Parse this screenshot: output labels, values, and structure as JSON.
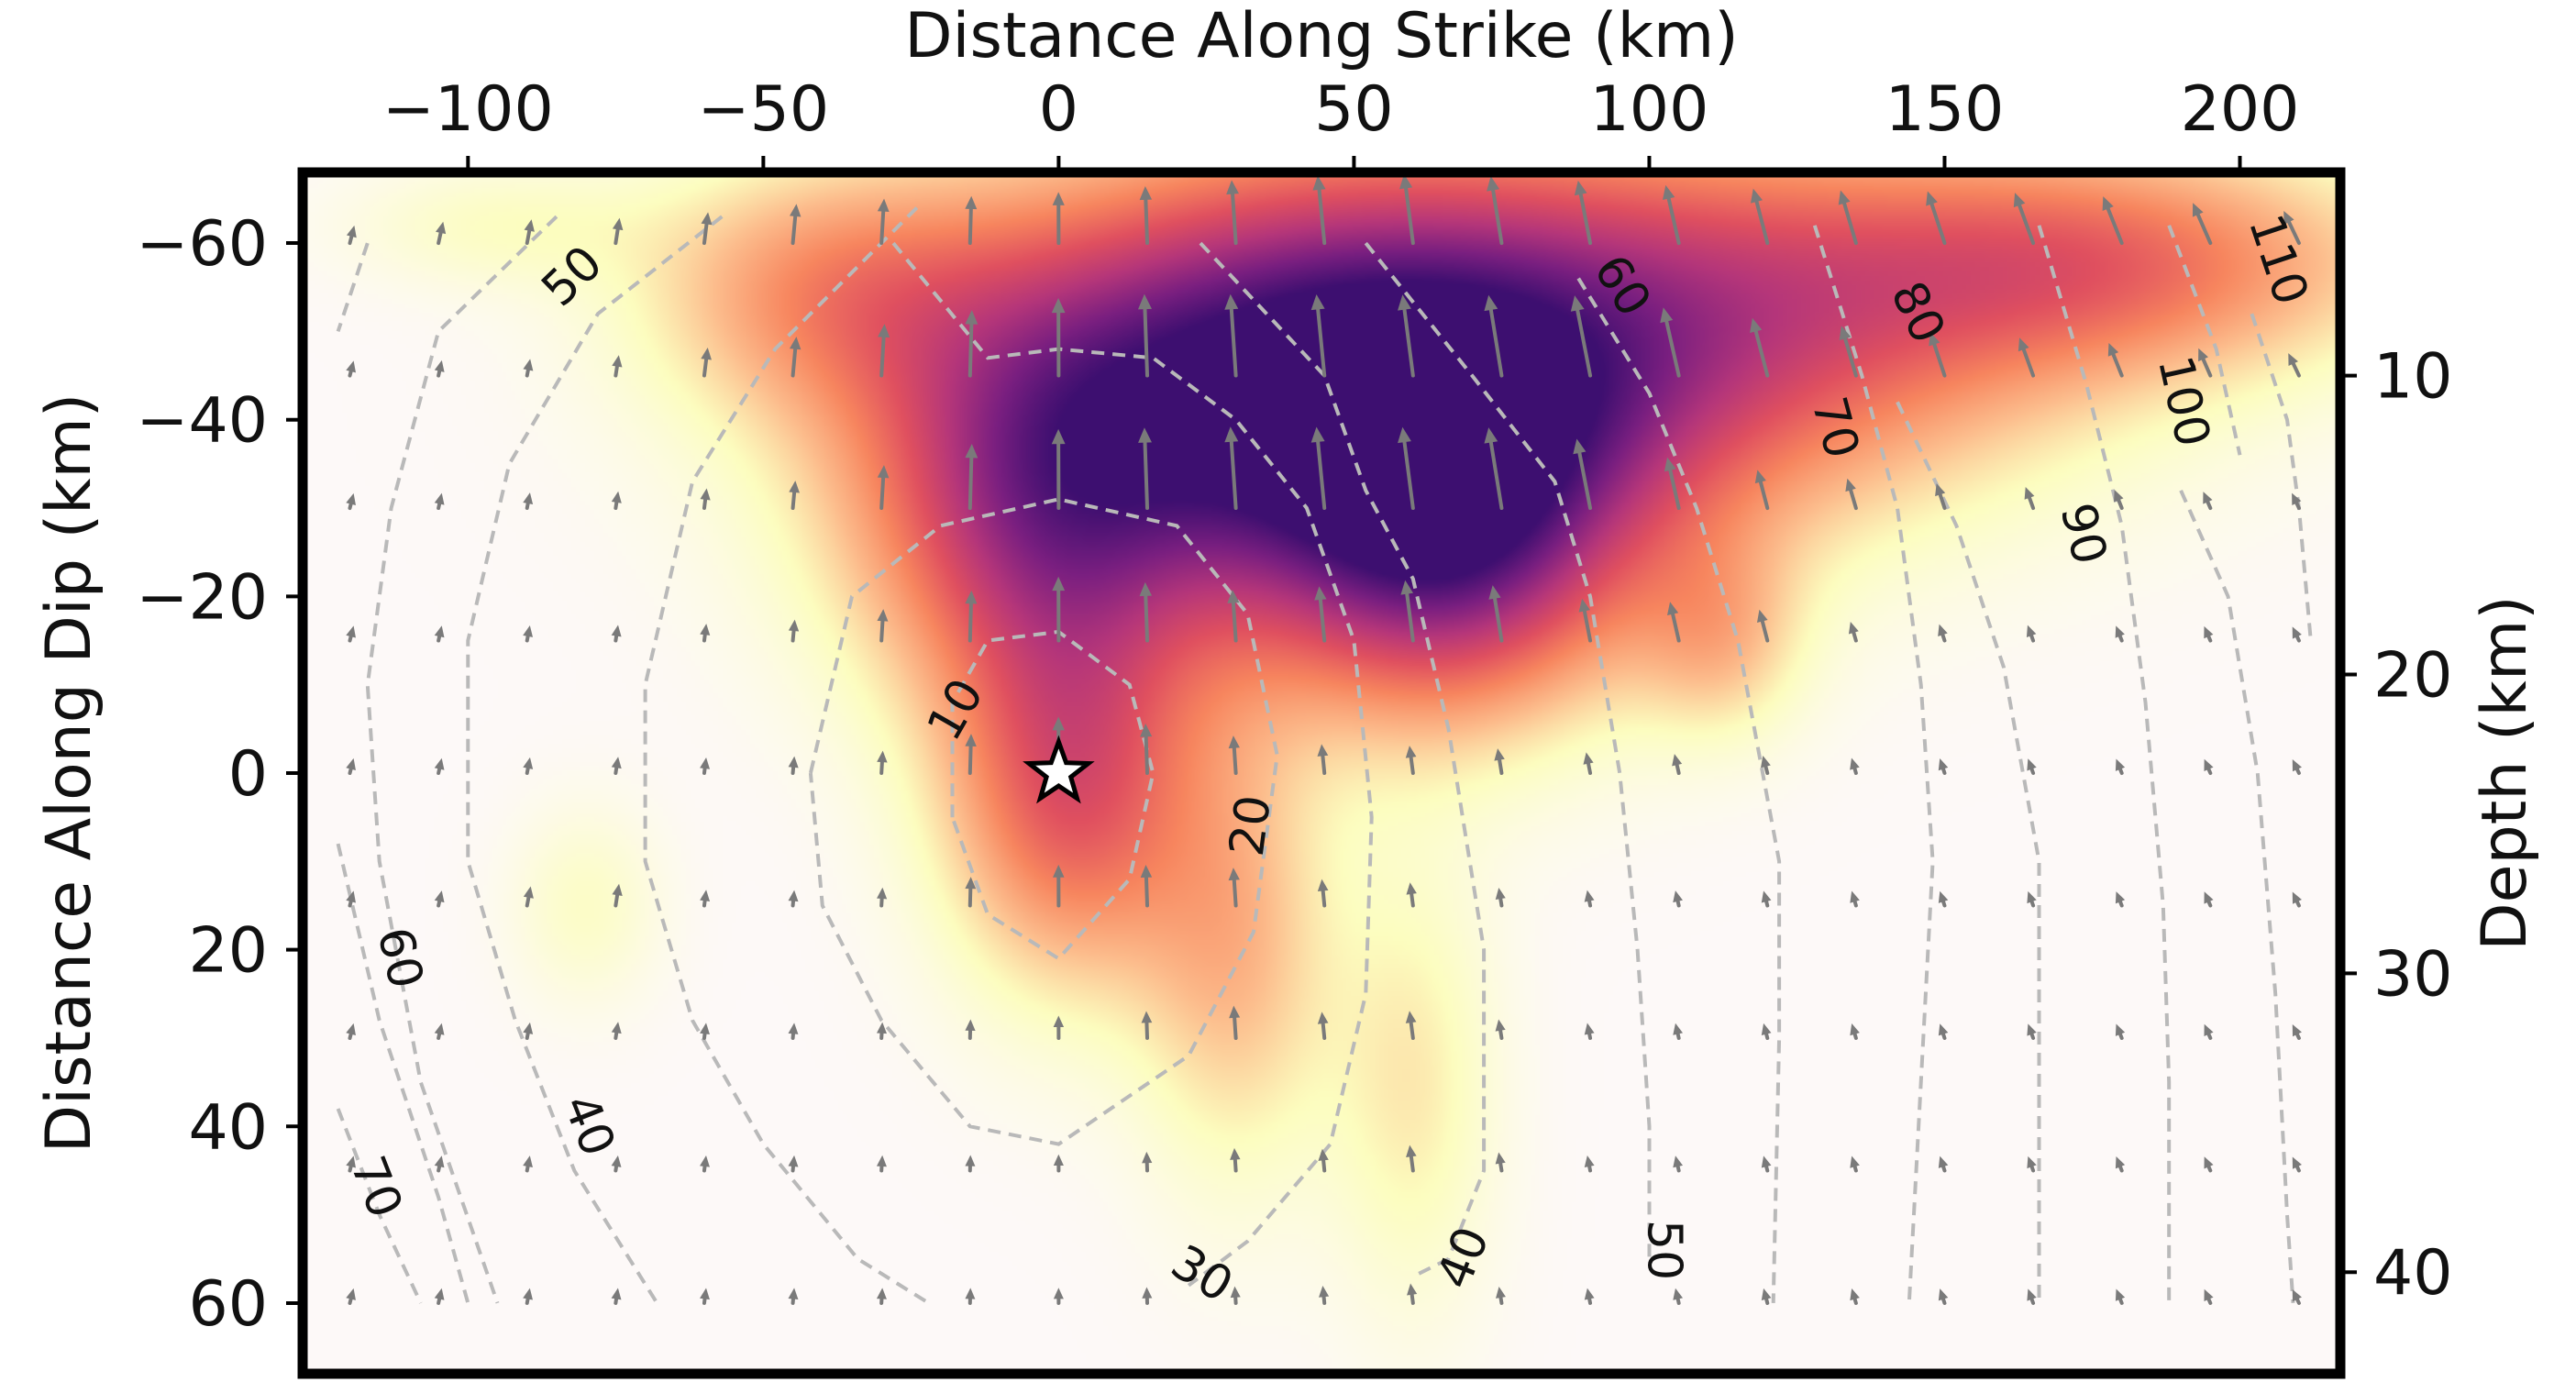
{
  "chart_data": {
    "type": "heatmap",
    "title": "",
    "xlabel_top": "Distance Along Strike (km)",
    "ylabel_left": "Distance Along Dip (km)",
    "ylabel_right": "Depth (km)",
    "xlim": [
      -128,
      217
    ],
    "ylim": [
      68,
      -68
    ],
    "x_ticks": [
      -100,
      -50,
      0,
      50,
      100,
      150,
      200
    ],
    "x_tick_labels": [
      "−100",
      "−50",
      "0",
      "50",
      "100",
      "150",
      "200"
    ],
    "y_ticks": [
      -60,
      -40,
      -20,
      0,
      20,
      40,
      60
    ],
    "y_tick_labels": [
      "−60",
      "−40",
      "−20",
      "0",
      "20",
      "40",
      "60"
    ],
    "depth_ticks": [
      10,
      20,
      30,
      40
    ],
    "depth_tick_labels": [
      "10",
      "20",
      "30",
      "40"
    ],
    "depth_range": [
      3.2,
      43.4
    ],
    "colormap": [
      "#fdf9f8",
      "#fcfdbf",
      "#fcbc8c",
      "#f7855e",
      "#e0505f",
      "#b5367a",
      "#7a1f80",
      "#3d0f70"
    ],
    "grid": false,
    "hypocenter": {
      "x": 0,
      "y": 0,
      "marker": "star"
    },
    "slip_patches": [
      {
        "x": 45,
        "y": -45,
        "sx": 45,
        "sy": 17,
        "amp": 1.0
      },
      {
        "x": 65,
        "y": -25,
        "sx": 22,
        "sy": 14,
        "amp": 0.62
      },
      {
        "x": -3,
        "y": -28,
        "sx": 22,
        "sy": 16,
        "amp": 0.5
      },
      {
        "x": 2,
        "y": 3,
        "sx": 15,
        "sy": 15,
        "amp": 0.5
      },
      {
        "x": 120,
        "y": -52,
        "sx": 45,
        "sy": 15,
        "amp": 0.42
      },
      {
        "x": 180,
        "y": -58,
        "sx": 35,
        "sy": 9,
        "amp": 0.38
      },
      {
        "x": -40,
        "y": -55,
        "sx": 22,
        "sy": 10,
        "amp": 0.3
      },
      {
        "x": 30,
        "y": 20,
        "sx": 12,
        "sy": 18,
        "amp": 0.28
      },
      {
        "x": 60,
        "y": 35,
        "sx": 10,
        "sy": 18,
        "amp": 0.18
      },
      {
        "x": 112,
        "y": -15,
        "sx": 10,
        "sy": 8,
        "amp": 0.22
      },
      {
        "x": -80,
        "y": 15,
        "sx": 9,
        "sy": 8,
        "amp": 0.12
      },
      {
        "x": -95,
        "y": -62,
        "sx": 18,
        "sy": 5,
        "amp": 0.12
      }
    ],
    "rupture_contours": [
      {
        "label": "10",
        "points": [
          [
            -18,
            5
          ],
          [
            -18,
            -8
          ],
          [
            -12,
            -15
          ],
          [
            0,
            -16
          ],
          [
            12,
            -10
          ],
          [
            16,
            0
          ],
          [
            12,
            12
          ],
          [
            0,
            21
          ],
          [
            -12,
            16
          ],
          [
            -18,
            5
          ]
        ],
        "label_at": [
          -17,
          -7
        ]
      },
      {
        "label": "20",
        "points": [
          [
            -42,
            0
          ],
          [
            -35,
            -20
          ],
          [
            -20,
            -28
          ],
          [
            0,
            -31
          ],
          [
            20,
            -28
          ],
          [
            32,
            -18
          ],
          [
            37,
            -2
          ],
          [
            33,
            18
          ],
          [
            22,
            32
          ],
          [
            0,
            42
          ],
          [
            -15,
            40
          ],
          [
            -30,
            28
          ],
          [
            -40,
            15
          ],
          [
            -42,
            0
          ]
        ],
        "label_at": [
          33,
          6
        ]
      },
      {
        "label": "30",
        "points": [
          [
            -24,
            -64
          ],
          [
            -48,
            -48
          ],
          [
            -62,
            -33
          ],
          [
            -70,
            -10
          ],
          [
            -70,
            10
          ],
          [
            -62,
            28
          ],
          [
            -50,
            42
          ],
          [
            -34,
            55
          ],
          [
            -22,
            60
          ]
        ],
        "label_at": [
          24,
          57
        ]
      },
      {
        "label": "30",
        "points": [
          [
            -28,
            -60
          ],
          [
            -12,
            -47
          ],
          [
            0,
            -48
          ],
          [
            16,
            -47
          ],
          [
            30,
            -40
          ],
          [
            42,
            -30
          ],
          [
            50,
            -15
          ],
          [
            53,
            5
          ],
          [
            52,
            25
          ],
          [
            46,
            42
          ],
          [
            32,
            53
          ],
          [
            22,
            58
          ]
        ],
        "label_at": null
      },
      {
        "label": "40",
        "points": [
          [
            -57,
            -63
          ],
          [
            -78,
            -52
          ],
          [
            -93,
            -35
          ],
          [
            -100,
            -15
          ],
          [
            -100,
            10
          ],
          [
            -92,
            28
          ],
          [
            -82,
            45
          ],
          [
            -68,
            60
          ]
        ],
        "label_at": [
          -80,
          40
        ]
      },
      {
        "label": "40",
        "points": [
          [
            24,
            -60
          ],
          [
            45,
            -45
          ],
          [
            52,
            -32
          ],
          [
            60,
            -22
          ],
          [
            66,
            -5
          ],
          [
            72,
            20
          ],
          [
            72,
            45
          ],
          [
            66,
            55
          ],
          [
            60,
            57
          ]
        ],
        "label_at": [
          69,
          55
        ]
      },
      {
        "label": "50",
        "points": [
          [
            -85,
            -63
          ],
          [
            -105,
            -50
          ],
          [
            -113,
            -30
          ],
          [
            -117,
            -10
          ],
          [
            -115,
            10
          ],
          [
            -108,
            35
          ],
          [
            -95,
            60
          ]
        ],
        "label_at": [
          -82,
          -56
        ]
      },
      {
        "label": "50",
        "points": [
          [
            52,
            -60
          ],
          [
            70,
            -45
          ],
          [
            84,
            -33
          ],
          [
            90,
            -20
          ],
          [
            95,
            0
          ],
          [
            98,
            20
          ],
          [
            100,
            40
          ],
          [
            100,
            55
          ]
        ],
        "label_at": [
          102,
          54
        ]
      },
      {
        "label": "60",
        "points": [
          [
            -117,
            -60
          ],
          [
            -122,
            -50
          ]
        ],
        "label_at": null
      },
      {
        "label": "60",
        "points": [
          [
            -122,
            8
          ],
          [
            -115,
            28
          ],
          [
            -105,
            48
          ],
          [
            -100,
            60
          ]
        ],
        "label_at": [
          -112,
          21
        ]
      },
      {
        "label": "60",
        "points": [
          [
            88,
            -56
          ],
          [
            100,
            -43
          ],
          [
            108,
            -30
          ],
          [
            115,
            -15
          ],
          [
            122,
            10
          ],
          [
            122,
            30
          ],
          [
            121,
            60
          ]
        ],
        "label_at": [
          95,
          -55
        ]
      },
      {
        "label": "70",
        "points": [
          [
            -122,
            38
          ],
          [
            -115,
            50
          ],
          [
            -108,
            60
          ]
        ],
        "label_at": [
          -116,
          47
        ]
      },
      {
        "label": "70",
        "points": [
          [
            128,
            -62
          ],
          [
            136,
            -45
          ],
          [
            142,
            -30
          ],
          [
            146,
            -10
          ],
          [
            148,
            10
          ],
          [
            146,
            35
          ],
          [
            144,
            60
          ]
        ],
        "label_at": [
          131,
          -39
        ]
      },
      {
        "label": "80",
        "points": [
          [
            142,
            -42
          ],
          [
            152,
            -28
          ],
          [
            160,
            -12
          ],
          [
            166,
            10
          ],
          [
            166,
            35
          ],
          [
            166,
            60
          ]
        ],
        "label_at": [
          145,
          -52
        ]
      },
      {
        "label": "90",
        "points": [
          [
            166,
            -62
          ],
          [
            174,
            -44
          ],
          [
            180,
            -28
          ],
          [
            184,
            -8
          ],
          [
            187,
            15
          ],
          [
            188,
            35
          ],
          [
            188,
            60
          ]
        ],
        "label_at": [
          173,
          -27
        ]
      },
      {
        "label": "100",
        "points": [
          [
            188,
            -62
          ],
          [
            196,
            -48
          ],
          [
            200,
            -36
          ]
        ],
        "label_at": [
          190,
          -42
        ]
      },
      {
        "label": "100",
        "points": [
          [
            190,
            -32
          ],
          [
            198,
            -20
          ],
          [
            203,
            0
          ],
          [
            206,
            25
          ],
          [
            208,
            50
          ],
          [
            209,
            60
          ]
        ],
        "label_at": null
      },
      {
        "label": "110",
        "points": [
          [
            202,
            -52
          ],
          [
            208,
            -40
          ],
          [
            210,
            -30
          ],
          [
            212,
            -15
          ]
        ],
        "label_at": [
          206,
          -58
        ]
      }
    ]
  }
}
